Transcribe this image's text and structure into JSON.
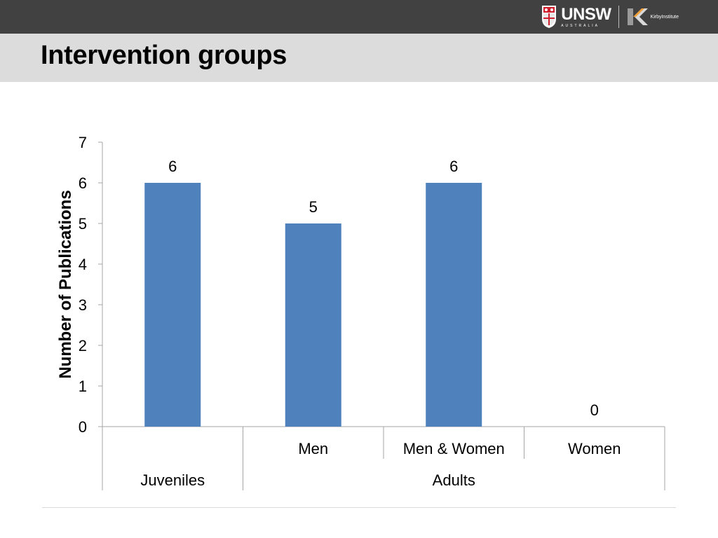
{
  "header": {
    "org_name": "UNSW",
    "org_sub": "AUSTRALIA",
    "partner_name": "KirbyInstitute"
  },
  "page": {
    "title": "Intervention groups"
  },
  "colors": {
    "bar": "#4f81bd",
    "axis": "#a6a6a6"
  },
  "chart_data": {
    "type": "bar",
    "title": "",
    "xlabel": "",
    "ylabel": "Number of Publications",
    "ylim": [
      0,
      7
    ],
    "yticks": [
      0,
      1,
      2,
      3,
      4,
      5,
      6,
      7
    ],
    "categories": [
      "",
      "Men",
      "Men & Women",
      "Women"
    ],
    "groups": [
      {
        "label": "Juveniles",
        "categories": [
          ""
        ]
      },
      {
        "label": "Adults",
        "categories": [
          "Men",
          "Men & Women",
          "Women"
        ]
      }
    ],
    "values": [
      6,
      5,
      6,
      0
    ],
    "data_labels": [
      "6",
      "5",
      "6",
      "0"
    ],
    "grid": false,
    "legend": "none"
  }
}
